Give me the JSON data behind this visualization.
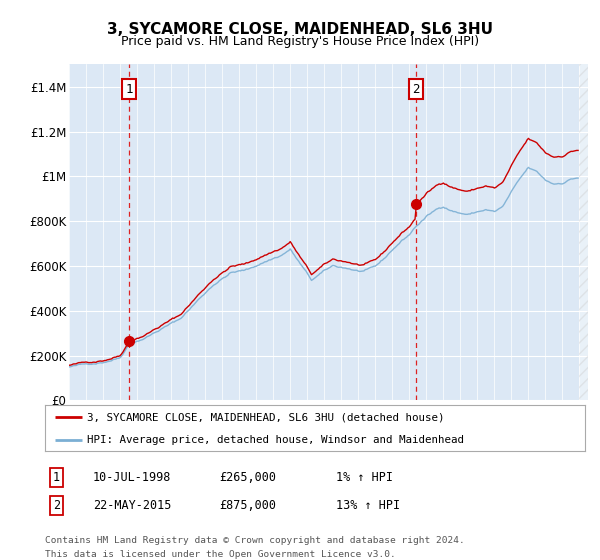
{
  "title": "3, SYCAMORE CLOSE, MAIDENHEAD, SL6 3HU",
  "subtitle": "Price paid vs. HM Land Registry's House Price Index (HPI)",
  "legend_line1": "3, SYCAMORE CLOSE, MAIDENHEAD, SL6 3HU (detached house)",
  "legend_line2": "HPI: Average price, detached house, Windsor and Maidenhead",
  "sale1_label": "1",
  "sale1_date": "10-JUL-1998",
  "sale1_price": 265000,
  "sale1_year": 1998.53,
  "sale2_label": "2",
  "sale2_date": "22-MAY-2015",
  "sale2_price": 875000,
  "sale2_year": 2015.38,
  "sale1_hpi_pct": "1% ↑ HPI",
  "sale2_hpi_pct": "13% ↑ HPI",
  "ylim": [
    0,
    1500000
  ],
  "yticks": [
    0,
    200000,
    400000,
    600000,
    800000,
    1000000,
    1200000,
    1400000
  ],
  "ytick_labels": [
    "£0",
    "£200K",
    "£400K",
    "£600K",
    "£800K",
    "£1M",
    "£1.2M",
    "£1.4M"
  ],
  "xlim_start": 1995.0,
  "xlim_end": 2025.5,
  "background_color": "#dce8f5",
  "grid_color": "#ffffff",
  "red_line_color": "#cc0000",
  "blue_line_color": "#7bafd4",
  "vline_color": "#dd2222",
  "sale_box_color": "#cc0000",
  "footnote_line1": "Contains HM Land Registry data © Crown copyright and database right 2024.",
  "footnote_line2": "This data is licensed under the Open Government Licence v3.0."
}
